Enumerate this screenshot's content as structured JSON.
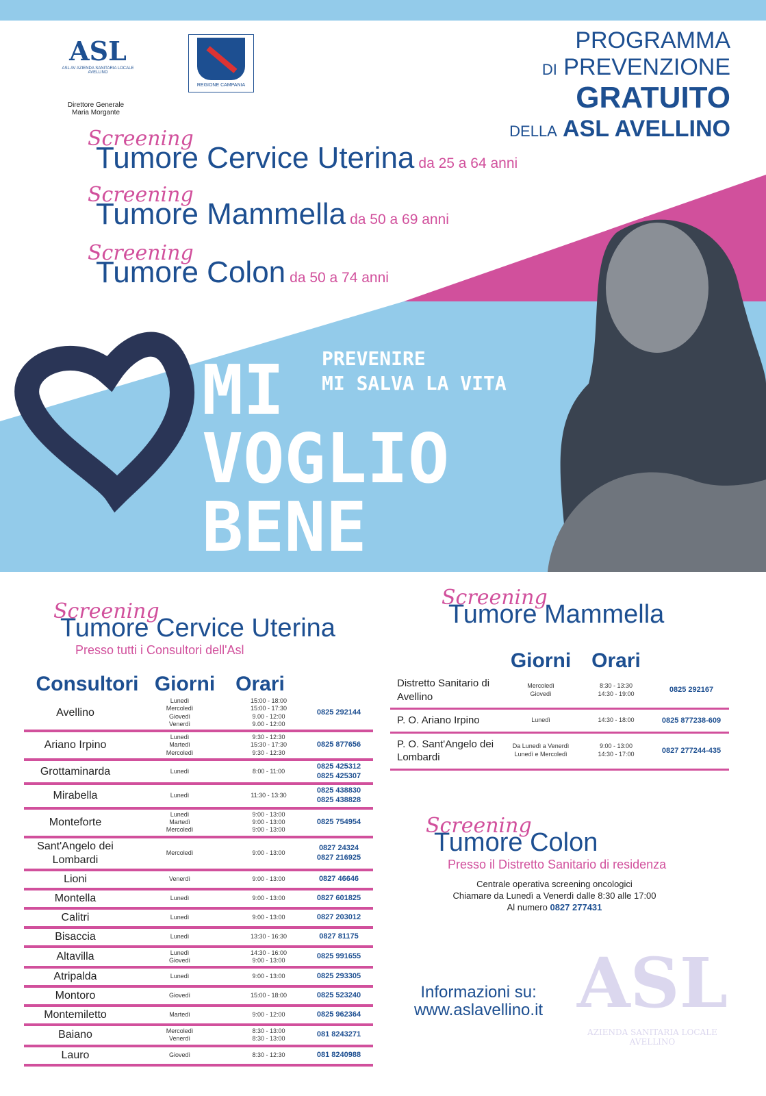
{
  "colors": {
    "accent_blue": "#93cbea",
    "navy": "#1d4f91",
    "pink": "#d1509c",
    "heart": "#2a3556"
  },
  "header": {
    "asl_logo": "ASL AV AZIENDA SANITARIA LOCALE AVELLINO",
    "director_label": "Direttore Generale",
    "director_name": "Maria Morgante",
    "region_logo": "REGIONE CAMPANIA",
    "program": [
      "PROGRAMMA",
      "DI",
      "PREVENZIONE",
      "GRATUITO",
      "DELLA",
      "ASL AVELLINO"
    ]
  },
  "screenings": [
    {
      "label": "Screening",
      "title": "Tumore Cervice Uterina",
      "age": "da 25 a 64 anni"
    },
    {
      "label": "Screening",
      "title": "Tumore Mammella",
      "age": "da 50 a 69 anni"
    },
    {
      "label": "Screening",
      "title": "Tumore Colon",
      "age": "da 50 a 74 anni"
    }
  ],
  "hero": {
    "slogan1": "PREVENIRE",
    "slogan2": "MI SALVA LA VITA",
    "line1": "MI",
    "line2": "VOGLIO",
    "line3": "BENE"
  },
  "cervice": {
    "label": "Screening",
    "title": "Tumore Cervice Uterina",
    "subtitle": "Presso tutti i Consultori dell'Asl",
    "headers": [
      "Consultori",
      "Giorni",
      "Orari"
    ],
    "rows": [
      {
        "name": "Avellino",
        "days": "Lunedì\nMercoledì\nGiovedì\nVenerdì",
        "hours": "15:00 - 18:00\n15:00 - 17:30\n9.00 - 12:00\n9.00 - 12:00",
        "phone": "0825 292144"
      },
      {
        "name": "Ariano Irpino",
        "days": "Lunedì\nMartedì\nMercoledì",
        "hours": "9:30 - 12:30\n15:30 - 17:30\n9:30 - 12:30",
        "phone": "0825 877656"
      },
      {
        "name": "Grottaminarda",
        "days": "Lunedì",
        "hours": "8:00 - 11:00",
        "phone": "0825 425312\n0825 425307"
      },
      {
        "name": "Mirabella",
        "days": "Lunedì",
        "hours": "11:30 - 13:30",
        "phone": "0825 438830\n0825 438828"
      },
      {
        "name": "Monteforte",
        "days": "Lunedì\nMartedì\nMercoledì",
        "hours": "9:00 - 13:00\n9:00 - 13:00\n9:00 - 13:00",
        "phone": "0825 754954"
      },
      {
        "name": "Sant'Angelo dei Lombardi",
        "days": "Mercoledì",
        "hours": "9:00 - 13:00",
        "phone": "0827 24324\n0827 216925"
      },
      {
        "name": "Lioni",
        "days": "Venerdì",
        "hours": "9:00 - 13:00",
        "phone": "0827 46646"
      },
      {
        "name": "Montella",
        "days": "Lunedì",
        "hours": "9:00 - 13:00",
        "phone": "0827 601825"
      },
      {
        "name": "Calitri",
        "days": "Lunedì",
        "hours": "9:00 - 13:00",
        "phone": "0827 203012"
      },
      {
        "name": "Bisaccia",
        "days": "Lunedì",
        "hours": "13:30 - 16:30",
        "phone": "0827 81175"
      },
      {
        "name": "Altavilla",
        "days": "Lunedì\nGiovedì",
        "hours": "14:30 - 16:00\n9:00 - 13:00",
        "phone": "0825 991655"
      },
      {
        "name": "Atripalda",
        "days": "Lunedì",
        "hours": "9:00 - 13:00",
        "phone": "0825 293305"
      },
      {
        "name": "Montoro",
        "days": "Giovedì",
        "hours": "15:00 - 18:00",
        "phone": "0825 523240"
      },
      {
        "name": "Montemiletto",
        "days": "Martedì",
        "hours": "9:00 - 12:00",
        "phone": "0825 962364"
      },
      {
        "name": "Baiano",
        "days": "Mercoledì\nVenerdì",
        "hours": "8:30 - 13:00\n8:30 - 13:00",
        "phone": "081 8243271"
      },
      {
        "name": "Lauro",
        "days": "Giovedì",
        "hours": "8:30 - 12:30",
        "phone": "081 8240988"
      }
    ]
  },
  "mammella": {
    "label": "Screening",
    "title": "Tumore Mammella",
    "headers": [
      "Giorni",
      "Orari"
    ],
    "rows": [
      {
        "name": "Distretto Sanitario di Avellino",
        "days": "Mercoledì\nGiovedì",
        "hours": "8:30 - 13:30\n14:30 - 19:00",
        "phone": "0825 292167"
      },
      {
        "name": "P. O. Ariano Irpino",
        "days": "Lunedì",
        "hours": "14:30 - 18:00",
        "phone": "0825 877238-609"
      },
      {
        "name": "P. O. Sant'Angelo dei Lombardi",
        "days": "Da Lunedì a Venerdì\nLunedì e Mercoledì",
        "hours": "9:00 - 13:00\n14:30 - 17:00",
        "phone": "0827 277244-435"
      }
    ]
  },
  "colon": {
    "label": "Screening",
    "title": "Tumore Colon",
    "subtitle": "Presso il Distretto Sanitario di residenza",
    "info1": "Centrale operativa screening oncologici",
    "info2": "Chiamare da Lunedì a Venerdì  dalle 8:30 alle 17:00",
    "info3": "Al numero",
    "phone": "0827 277431"
  },
  "footer": {
    "info_label": "Informazioni su:",
    "website": "www.aslavellino.it",
    "watermark": "ASL AV AZIENDA SANITARIA LOCALE AVELLINO REGIONE CAMPANIA"
  }
}
